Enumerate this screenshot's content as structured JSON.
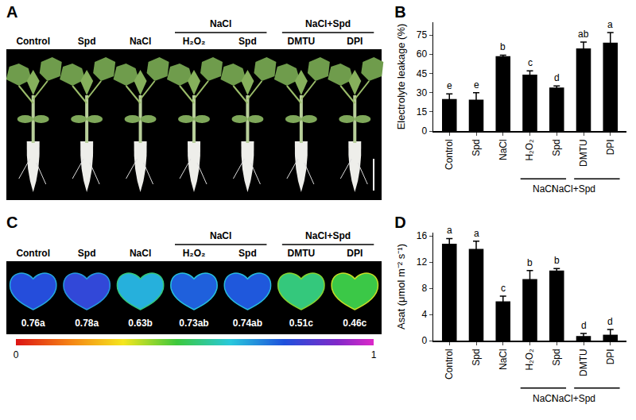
{
  "panels": [
    {
      "label": "A",
      "type": "photo",
      "samples": [
        "Control",
        "Spd",
        "NaCl",
        "H₂O₂",
        "Spd",
        "DMTU",
        "DPI"
      ],
      "groups": [
        {
          "label": "NaCl",
          "first": 3,
          "last": 4
        },
        {
          "label": "NaCl+Spd",
          "first": 5,
          "last": 6
        }
      ]
    },
    {
      "label": "C",
      "type": "image_map",
      "samples": [
        "Control",
        "Spd",
        "NaCl",
        "H₂O₂",
        "Spd",
        "DMTU",
        "DPI"
      ],
      "groups": [
        {
          "label": "NaCl",
          "first": 3,
          "last": 4
        },
        {
          "label": "NaCl+Spd",
          "first": 5,
          "last": 6
        }
      ],
      "values": [
        0.76,
        0.78,
        0.63,
        0.73,
        0.74,
        0.51,
        0.46
      ],
      "letters": [
        "a",
        "a",
        "b",
        "ab",
        "ab",
        "c",
        "c"
      ],
      "colorbar": {
        "range": [
          0,
          1
        ],
        "ticks": [
          0,
          1
        ]
      }
    }
  ],
  "chart_data": [
    {
      "type": "bar",
      "title": "B",
      "categories": [
        "Control",
        "Spd",
        "NaCl",
        "H₂O₂",
        "Spd",
        "DMTU",
        "DPI"
      ],
      "groups": [
        {
          "label": "NaCl",
          "first": 3,
          "last": 4
        },
        {
          "label": "NaCl+Spd",
          "first": 5,
          "last": 6
        }
      ],
      "values": [
        25,
        24.5,
        58.5,
        44,
        34,
        64.5,
        69
      ],
      "errors": [
        4,
        5.5,
        0.8,
        3,
        1.2,
        5,
        8
      ],
      "letters": [
        "e",
        "e",
        "b",
        "c",
        "d",
        "ab",
        "a"
      ],
      "color": "#000000",
      "grid": false,
      "y_label": "Electrolyte leakage (%)",
      "ylim": [
        0,
        85
      ],
      "yticks": [
        0,
        15,
        30,
        45,
        60,
        75
      ]
    },
    {
      "type": "bar",
      "title": "D",
      "categories": [
        "Control",
        "Spd",
        "NaCl",
        "H₂O₂",
        "Spd",
        "DMTU",
        "DPI"
      ],
      "groups": [
        {
          "label": "NaCl",
          "first": 3,
          "last": 4
        },
        {
          "label": "NaCl+Spd",
          "first": 5,
          "last": 6
        }
      ],
      "values": [
        14.8,
        14.0,
        6.0,
        9.4,
        10.7,
        0.7,
        0.9
      ],
      "errors": [
        0.8,
        1.2,
        0.8,
        1.3,
        0.3,
        0.4,
        0.8
      ],
      "letters": [
        "a",
        "a",
        "c",
        "b",
        "b",
        "d",
        "d"
      ],
      "color": "#000000",
      "grid": false,
      "y_label": "Asat (μmol m⁻² s⁻¹)",
      "ylim": [
        0,
        16.5
      ],
      "yticks": [
        0,
        4,
        8,
        12,
        16
      ]
    }
  ]
}
